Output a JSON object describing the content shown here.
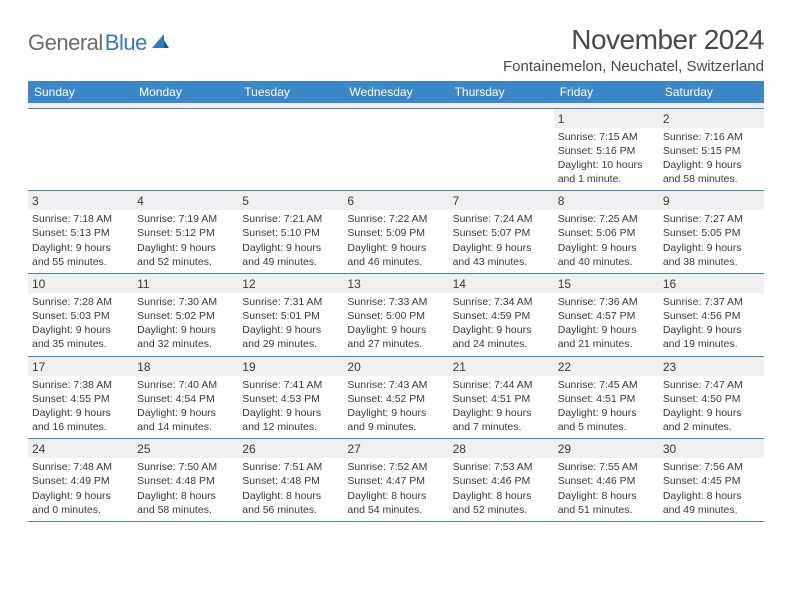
{
  "logo": {
    "text_general": "General",
    "text_blue": "Blue"
  },
  "title": {
    "month": "November 2024",
    "location": "Fontainemelon, Neuchatel, Switzerland"
  },
  "colors": {
    "header_bg": "#3b87c8",
    "header_text": "#ffffff",
    "day_bg": "#f0f0f0",
    "border": "#3b87c8",
    "text": "#3a3a3a",
    "page_bg": "#ffffff",
    "logo_gray": "#6b6b6b",
    "logo_blue": "#2f7abf"
  },
  "day_names": [
    "Sunday",
    "Monday",
    "Tuesday",
    "Wednesday",
    "Thursday",
    "Friday",
    "Saturday"
  ],
  "weeks": [
    [
      null,
      null,
      null,
      null,
      null,
      {
        "n": "1",
        "sr": "7:15 AM",
        "ss": "5:16 PM",
        "dl": "10 hours and 1 minute."
      },
      {
        "n": "2",
        "sr": "7:16 AM",
        "ss": "5:15 PM",
        "dl": "9 hours and 58 minutes."
      }
    ],
    [
      {
        "n": "3",
        "sr": "7:18 AM",
        "ss": "5:13 PM",
        "dl": "9 hours and 55 minutes."
      },
      {
        "n": "4",
        "sr": "7:19 AM",
        "ss": "5:12 PM",
        "dl": "9 hours and 52 minutes."
      },
      {
        "n": "5",
        "sr": "7:21 AM",
        "ss": "5:10 PM",
        "dl": "9 hours and 49 minutes."
      },
      {
        "n": "6",
        "sr": "7:22 AM",
        "ss": "5:09 PM",
        "dl": "9 hours and 46 minutes."
      },
      {
        "n": "7",
        "sr": "7:24 AM",
        "ss": "5:07 PM",
        "dl": "9 hours and 43 minutes."
      },
      {
        "n": "8",
        "sr": "7:25 AM",
        "ss": "5:06 PM",
        "dl": "9 hours and 40 minutes."
      },
      {
        "n": "9",
        "sr": "7:27 AM",
        "ss": "5:05 PM",
        "dl": "9 hours and 38 minutes."
      }
    ],
    [
      {
        "n": "10",
        "sr": "7:28 AM",
        "ss": "5:03 PM",
        "dl": "9 hours and 35 minutes."
      },
      {
        "n": "11",
        "sr": "7:30 AM",
        "ss": "5:02 PM",
        "dl": "9 hours and 32 minutes."
      },
      {
        "n": "12",
        "sr": "7:31 AM",
        "ss": "5:01 PM",
        "dl": "9 hours and 29 minutes."
      },
      {
        "n": "13",
        "sr": "7:33 AM",
        "ss": "5:00 PM",
        "dl": "9 hours and 27 minutes."
      },
      {
        "n": "14",
        "sr": "7:34 AM",
        "ss": "4:59 PM",
        "dl": "9 hours and 24 minutes."
      },
      {
        "n": "15",
        "sr": "7:36 AM",
        "ss": "4:57 PM",
        "dl": "9 hours and 21 minutes."
      },
      {
        "n": "16",
        "sr": "7:37 AM",
        "ss": "4:56 PM",
        "dl": "9 hours and 19 minutes."
      }
    ],
    [
      {
        "n": "17",
        "sr": "7:38 AM",
        "ss": "4:55 PM",
        "dl": "9 hours and 16 minutes."
      },
      {
        "n": "18",
        "sr": "7:40 AM",
        "ss": "4:54 PM",
        "dl": "9 hours and 14 minutes."
      },
      {
        "n": "19",
        "sr": "7:41 AM",
        "ss": "4:53 PM",
        "dl": "9 hours and 12 minutes."
      },
      {
        "n": "20",
        "sr": "7:43 AM",
        "ss": "4:52 PM",
        "dl": "9 hours and 9 minutes."
      },
      {
        "n": "21",
        "sr": "7:44 AM",
        "ss": "4:51 PM",
        "dl": "9 hours and 7 minutes."
      },
      {
        "n": "22",
        "sr": "7:45 AM",
        "ss": "4:51 PM",
        "dl": "9 hours and 5 minutes."
      },
      {
        "n": "23",
        "sr": "7:47 AM",
        "ss": "4:50 PM",
        "dl": "9 hours and 2 minutes."
      }
    ],
    [
      {
        "n": "24",
        "sr": "7:48 AM",
        "ss": "4:49 PM",
        "dl": "9 hours and 0 minutes."
      },
      {
        "n": "25",
        "sr": "7:50 AM",
        "ss": "4:48 PM",
        "dl": "8 hours and 58 minutes."
      },
      {
        "n": "26",
        "sr": "7:51 AM",
        "ss": "4:48 PM",
        "dl": "8 hours and 56 minutes."
      },
      {
        "n": "27",
        "sr": "7:52 AM",
        "ss": "4:47 PM",
        "dl": "8 hours and 54 minutes."
      },
      {
        "n": "28",
        "sr": "7:53 AM",
        "ss": "4:46 PM",
        "dl": "8 hours and 52 minutes."
      },
      {
        "n": "29",
        "sr": "7:55 AM",
        "ss": "4:46 PM",
        "dl": "8 hours and 51 minutes."
      },
      {
        "n": "30",
        "sr": "7:56 AM",
        "ss": "4:45 PM",
        "dl": "8 hours and 49 minutes."
      }
    ]
  ],
  "labels": {
    "sunrise_prefix": "Sunrise: ",
    "sunset_prefix": "Sunset: ",
    "daylight_prefix": "Daylight: "
  }
}
